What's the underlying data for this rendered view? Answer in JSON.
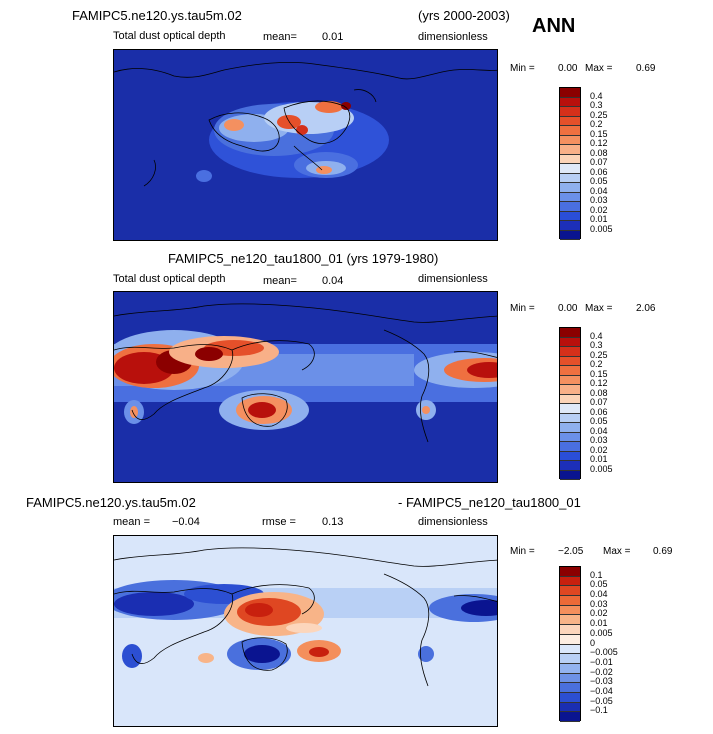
{
  "header": {
    "season": "ANN"
  },
  "panel1": {
    "case": "FAMIPC5.ne120.ys.tau5m.02",
    "years": "(yrs 2000-2003)",
    "variable": "Total dust optical depth",
    "mean_label": "mean=",
    "mean_value": "0.01",
    "units": "dimensionless",
    "min_label": "Min =",
    "min_value": "0.00",
    "max_label": "Max =",
    "max_value": "0.69",
    "levels": [
      "0.4",
      "0.3",
      "0.25",
      "0.2",
      "0.15",
      "0.12",
      "0.08",
      "0.07",
      "0.06",
      "0.05",
      "0.04",
      "0.03",
      "0.02",
      "0.01",
      "0.005"
    ]
  },
  "panel2": {
    "case_years": "FAMIPC5_ne120_tau1800_01 (yrs 1979-1980)",
    "variable": "Total dust optical depth",
    "mean_label": "mean=",
    "mean_value": "0.04",
    "units": "dimensionless",
    "min_label": "Min =",
    "min_value": "0.00",
    "max_label": "Max =",
    "max_value": "2.06",
    "levels": [
      "0.4",
      "0.3",
      "0.25",
      "0.2",
      "0.15",
      "0.12",
      "0.08",
      "0.07",
      "0.06",
      "0.05",
      "0.04",
      "0.03",
      "0.02",
      "0.01",
      "0.005"
    ]
  },
  "panel3": {
    "case_a": "FAMIPC5.ne120.ys.tau5m.02",
    "case_b": "- FAMIPC5_ne120_tau1800_01",
    "mean_label": "mean =",
    "mean_value": "−0.04",
    "rmse_label": "rmse =",
    "rmse_value": "0.13",
    "units": "dimensionless",
    "min_label": "Min =",
    "min_value": "−2.05",
    "max_label": "Max =",
    "max_value": "0.69",
    "levels": [
      "0.1",
      "0.05",
      "0.04",
      "0.03",
      "0.02",
      "0.01",
      "0.005",
      "0",
      "−0.005",
      "−0.01",
      "−0.02",
      "−0.03",
      "−0.04",
      "−0.05",
      "−0.1"
    ]
  },
  "colors": {
    "seq": [
      "#8b0000",
      "#b8100c",
      "#d4301a",
      "#e5502a",
      "#ef7040",
      "#f49060",
      "#f8b088",
      "#fbd4b8",
      "#dfe9f8",
      "#b8cff5",
      "#8fb0ee",
      "#6b90e8",
      "#4a6fe0",
      "#2a4ed8",
      "#1c2fb8",
      "#0a1490"
    ],
    "div": [
      "#8b0000",
      "#c8200e",
      "#df4722",
      "#ec6a38",
      "#f48f5c",
      "#f8b488",
      "#fcd6bc",
      "#fdeee2",
      "#dbe8fb",
      "#b9d0f5",
      "#93b3ef",
      "#6e92e6",
      "#4a70dd",
      "#2c4fd2",
      "#1a2eb2",
      "#0a1490"
    ],
    "ocean_dark": "#1a2ea8",
    "ocean_light": "#d9e6fa"
  }
}
